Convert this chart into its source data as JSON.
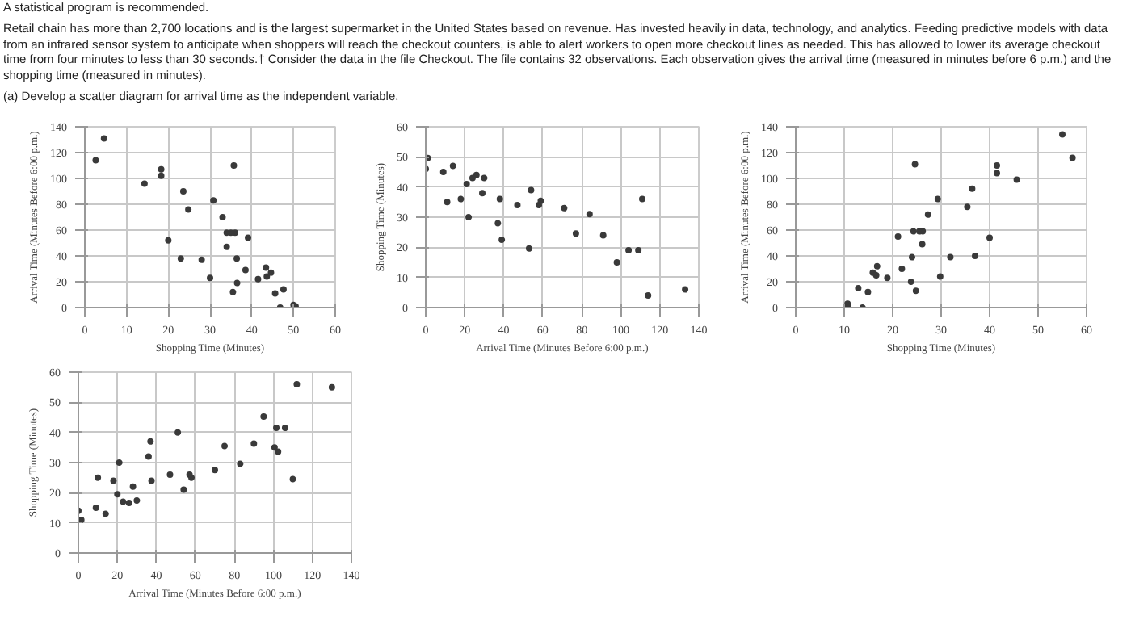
{
  "chart_data": [
    {
      "type": "other",
      "annotations": [
        "A statistical program is recommended.",
        "Retail chain has more than 2,700 locations and is the largest supermarket in the United States based on revenue. Has invested heavily in data, technology, and analytics. Feeding predictive models with data from an infrared sensor system to anticipate when shoppers will reach the checkout counters, is able to alert workers to open more checkout lines as needed. This has allowed to lower its average checkout time from four minutes to less than 30 seconds.† Consider the data in the file Checkout. The file contains 32 observations. Each observation gives the arrival time (measured in minutes before 6 p.m.) and the shopping time (measured in minutes).",
        "(a) Develop a scatter diagram for arrival time as the independent variable."
      ]
    },
    {
      "type": "scatter",
      "xlabel": "Shopping Time (Minutes)",
      "ylabel": "Arrival Time (Minutes Before 6:00 p.m.)",
      "xlim": [
        0,
        60
      ],
      "ylim": [
        0,
        140
      ],
      "xticks": [
        0,
        10,
        20,
        30,
        40,
        50,
        60
      ],
      "yticks": [
        0,
        20,
        40,
        60,
        80,
        100,
        120,
        140
      ],
      "grid": true,
      "marker": "circle",
      "x": [
        2.6,
        4.6,
        14.3,
        18.3,
        18.3,
        20,
        23.6,
        24.8,
        23,
        28,
        30.8,
        30,
        33,
        35.7,
        34,
        35,
        36,
        34,
        36.4,
        39.1,
        38.5,
        36.5,
        35.5,
        41.5,
        43.4,
        43.6,
        44.6,
        45.6,
        47.6,
        46.8,
        50,
        50.5
      ],
      "series": [
        {
          "color": "#3a3a3a",
          "values": [
            114,
            131,
            96,
            107,
            102,
            52,
            90,
            76,
            38,
            37,
            83,
            23,
            70,
            110,
            58,
            58,
            58,
            47,
            38,
            54,
            29,
            19,
            12,
            22,
            31,
            24,
            27,
            11,
            14,
            0,
            2,
            1
          ]
        }
      ]
    },
    {
      "type": "scatter",
      "xlabel": "Arrival Time (Minutes Before 6:00 p.m.)",
      "ylabel": "Shopping Time (Minutes)",
      "xlim": [
        0,
        140
      ],
      "ylim": [
        0,
        60
      ],
      "xticks": [
        0,
        20,
        40,
        60,
        80,
        100,
        120,
        140
      ],
      "yticks": [
        0,
        10,
        20,
        30,
        40,
        50,
        60
      ],
      "grid": true,
      "marker": "circle",
      "x": [
        0,
        1,
        9,
        14,
        11,
        18,
        21,
        24,
        26,
        30,
        29,
        22,
        38,
        37,
        39,
        47,
        53,
        54,
        58,
        59,
        71,
        77,
        84,
        91,
        98,
        104,
        109,
        111,
        114,
        133
      ],
      "series": [
        {
          "color": "#3a3a3a",
          "values": [
            46,
            49.6,
            45,
            47,
            35,
            36,
            41,
            43,
            44,
            43,
            38,
            30,
            36,
            28,
            22.5,
            34,
            19.6,
            39,
            34,
            35.4,
            33,
            24.6,
            31,
            24,
            15,
            19,
            19,
            36,
            4,
            6
          ]
        }
      ]
    },
    {
      "type": "scatter",
      "xlabel": "Shopping Time (Minutes)",
      "ylabel": "Arrival Time (Minutes Before 6:00 p.m.)",
      "xlim": [
        0,
        60
      ],
      "ylim": [
        0,
        140
      ],
      "xticks": [
        0,
        10,
        20,
        30,
        40,
        50,
        60
      ],
      "yticks": [
        0,
        20,
        40,
        60,
        80,
        100,
        120,
        140
      ],
      "grid": true,
      "marker": "circle",
      "x": [
        10.7,
        10.8,
        12.9,
        13.8,
        14.9,
        15.9,
        16.8,
        16.6,
        18.9,
        21.1,
        21.9,
        24,
        23.8,
        24.6,
        24.8,
        24.3,
        25.5,
        26.2,
        26.1,
        27.3,
        29.3,
        29.8,
        31.9,
        35.4,
        36.4,
        37,
        40,
        41.5,
        41.5,
        45.6,
        55,
        57.1
      ],
      "series": [
        {
          "color": "#3a3a3a",
          "values": [
            3,
            1,
            15,
            0,
            12,
            27,
            32,
            25,
            23,
            55,
            30,
            39,
            20,
            111,
            13,
            59,
            59,
            59,
            49,
            72,
            84,
            24,
            39,
            78,
            92,
            40,
            54,
            110,
            104,
            99,
            134,
            116
          ]
        }
      ]
    },
    {
      "type": "scatter",
      "xlabel": "Arrival Time (Minutes Before 6:00 p.m.)",
      "ylabel": "Shopping Time (Minutes)",
      "xlim": [
        0,
        140
      ],
      "ylim": [
        0,
        60
      ],
      "xticks": [
        0,
        20,
        40,
        60,
        80,
        100,
        120,
        140
      ],
      "yticks": [
        0,
        10,
        20,
        30,
        40,
        50,
        60
      ],
      "grid": true,
      "marker": "circle",
      "x": [
        0,
        1.5,
        9,
        10,
        14,
        18,
        20,
        21,
        23,
        26,
        28,
        30,
        36,
        37,
        37.5,
        47,
        51,
        54,
        57,
        58,
        70,
        75,
        83,
        90,
        95,
        101.5,
        106,
        100.6,
        102.4,
        110,
        112,
        130
      ],
      "series": [
        {
          "color": "#3a3a3a",
          "values": [
            14,
            11,
            15,
            25,
            13,
            24,
            19.5,
            30,
            17,
            16.6,
            22,
            17.4,
            32,
            37,
            24,
            26,
            40,
            21,
            26,
            25,
            27.5,
            35.5,
            29.6,
            36.3,
            45.3,
            41.5,
            41.5,
            35,
            33.6,
            24.5,
            56,
            55
          ]
        }
      ]
    }
  ]
}
